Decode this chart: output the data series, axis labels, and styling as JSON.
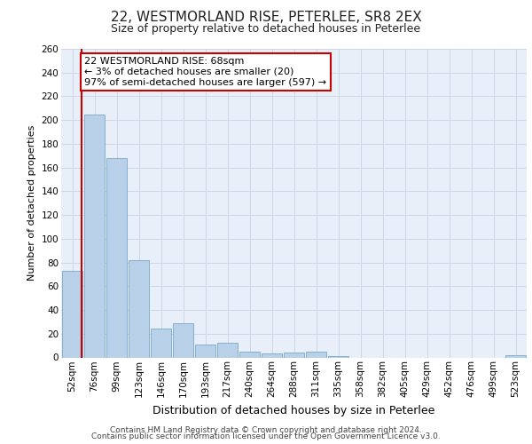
{
  "title1": "22, WESTMORLAND RISE, PETERLEE, SR8 2EX",
  "title2": "Size of property relative to detached houses in Peterlee",
  "xlabel": "Distribution of detached houses by size in Peterlee",
  "ylabel": "Number of detached properties",
  "categories": [
    "52sqm",
    "76sqm",
    "99sqm",
    "123sqm",
    "146sqm",
    "170sqm",
    "193sqm",
    "217sqm",
    "240sqm",
    "264sqm",
    "288sqm",
    "311sqm",
    "335sqm",
    "358sqm",
    "382sqm",
    "405sqm",
    "429sqm",
    "452sqm",
    "476sqm",
    "499sqm",
    "523sqm"
  ],
  "values": [
    73,
    205,
    168,
    82,
    24,
    29,
    11,
    12,
    5,
    3,
    4,
    5,
    1,
    0,
    0,
    0,
    0,
    0,
    0,
    0,
    2
  ],
  "bar_color": "#b8d0e8",
  "bar_edge_color": "#7aa8cc",
  "grid_color": "#ccd8e8",
  "bg_color": "#e8eff8",
  "vline_color": "#cc0000",
  "vline_x": 0.42,
  "annotation_line1": "22 WESTMORLAND RISE: 68sqm",
  "annotation_line2": "← 3% of detached houses are smaller (20)",
  "annotation_line3": "97% of semi-detached houses are larger (597) →",
  "annotation_box_color": "#ffffff",
  "annotation_box_edge_color": "#cc0000",
  "ylim": [
    0,
    260
  ],
  "yticks": [
    0,
    20,
    40,
    60,
    80,
    100,
    120,
    140,
    160,
    180,
    200,
    220,
    240,
    260
  ],
  "footer1": "Contains HM Land Registry data © Crown copyright and database right 2024.",
  "footer2": "Contains public sector information licensed under the Open Government Licence v3.0.",
  "title1_fontsize": 11,
  "title2_fontsize": 9,
  "xlabel_fontsize": 9,
  "ylabel_fontsize": 8,
  "tick_fontsize": 7.5,
  "footer_fontsize": 6.5,
  "annot_fontsize": 8
}
